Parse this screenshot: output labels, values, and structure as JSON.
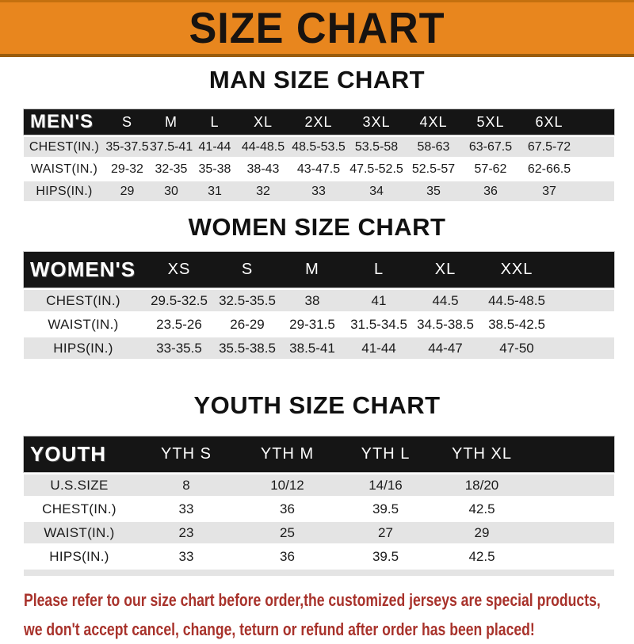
{
  "banner": {
    "title": "SIZE CHART"
  },
  "sections": [
    {
      "id": "men",
      "heading": "MAN SIZE CHART",
      "band_label": "MEN'S",
      "columns": [
        "S",
        "M",
        "L",
        "XL",
        "2XL",
        "3XL",
        "4XL",
        "5XL",
        "6XL"
      ],
      "rows": [
        {
          "label": "CHEST(IN.)",
          "values": [
            "35-37.5",
            "37.5-41",
            "41-44",
            "44-48.5",
            "48.5-53.5",
            "53.5-58",
            "58-63",
            "63-67.5",
            "67.5-72"
          ]
        },
        {
          "label": "WAIST(IN.)",
          "values": [
            "29-32",
            "32-35",
            "35-38",
            "38-43",
            "43-47.5",
            "47.5-52.5",
            "52.5-57",
            "57-62",
            "62-66.5"
          ]
        },
        {
          "label": "HIPS(IN.)",
          "values": [
            "29",
            "30",
            "31",
            "32",
            "33",
            "34",
            "35",
            "36",
            "37"
          ]
        }
      ]
    },
    {
      "id": "women",
      "heading": "WOMEN SIZE CHART",
      "band_label": "WOMEN'S",
      "columns": [
        "XS",
        "S",
        "M",
        "L",
        "XL",
        "XXL"
      ],
      "rows": [
        {
          "label": "CHEST(IN.)",
          "values": [
            "29.5-32.5",
            "32.5-35.5",
            "38",
            "41",
            "44.5",
            "44.5-48.5"
          ]
        },
        {
          "label": "WAIST(IN.)",
          "values": [
            "23.5-26",
            "26-29",
            "29-31.5",
            "31.5-34.5",
            "34.5-38.5",
            "38.5-42.5"
          ]
        },
        {
          "label": "HIPS(IN.)",
          "values": [
            "33-35.5",
            "35.5-38.5",
            "38.5-41",
            "41-44",
            "44-47",
            "47-50"
          ]
        }
      ]
    },
    {
      "id": "youth",
      "heading": "YOUTH SIZE CHART",
      "band_label": "YOUTH",
      "columns": [
        "YTH S",
        "YTH M",
        "YTH L",
        "YTH XL"
      ],
      "rows": [
        {
          "label": "U.S.SIZE",
          "values": [
            "8",
            "10/12",
            "14/16",
            "18/20"
          ]
        },
        {
          "label": "CHEST(IN.)",
          "values": [
            "33",
            "36",
            "39.5",
            "42.5"
          ]
        },
        {
          "label": "WAIST(IN.)",
          "values": [
            "23",
            "25",
            "27",
            "29"
          ]
        },
        {
          "label": "HIPS(IN.)",
          "values": [
            "33",
            "36",
            "39.5",
            "42.5"
          ]
        }
      ]
    }
  ],
  "footer": {
    "line1": "Please refer to our size chart before order,the customized jerseys are special products,",
    "line2": "we don't accept cancel, change, teturn or refund after order has been placed!"
  },
  "colors": {
    "banner_bg": "#e8861e",
    "band_bg": "#151515",
    "row_alt_bg": "#e4e4e4",
    "footer_text": "#a8322b"
  }
}
